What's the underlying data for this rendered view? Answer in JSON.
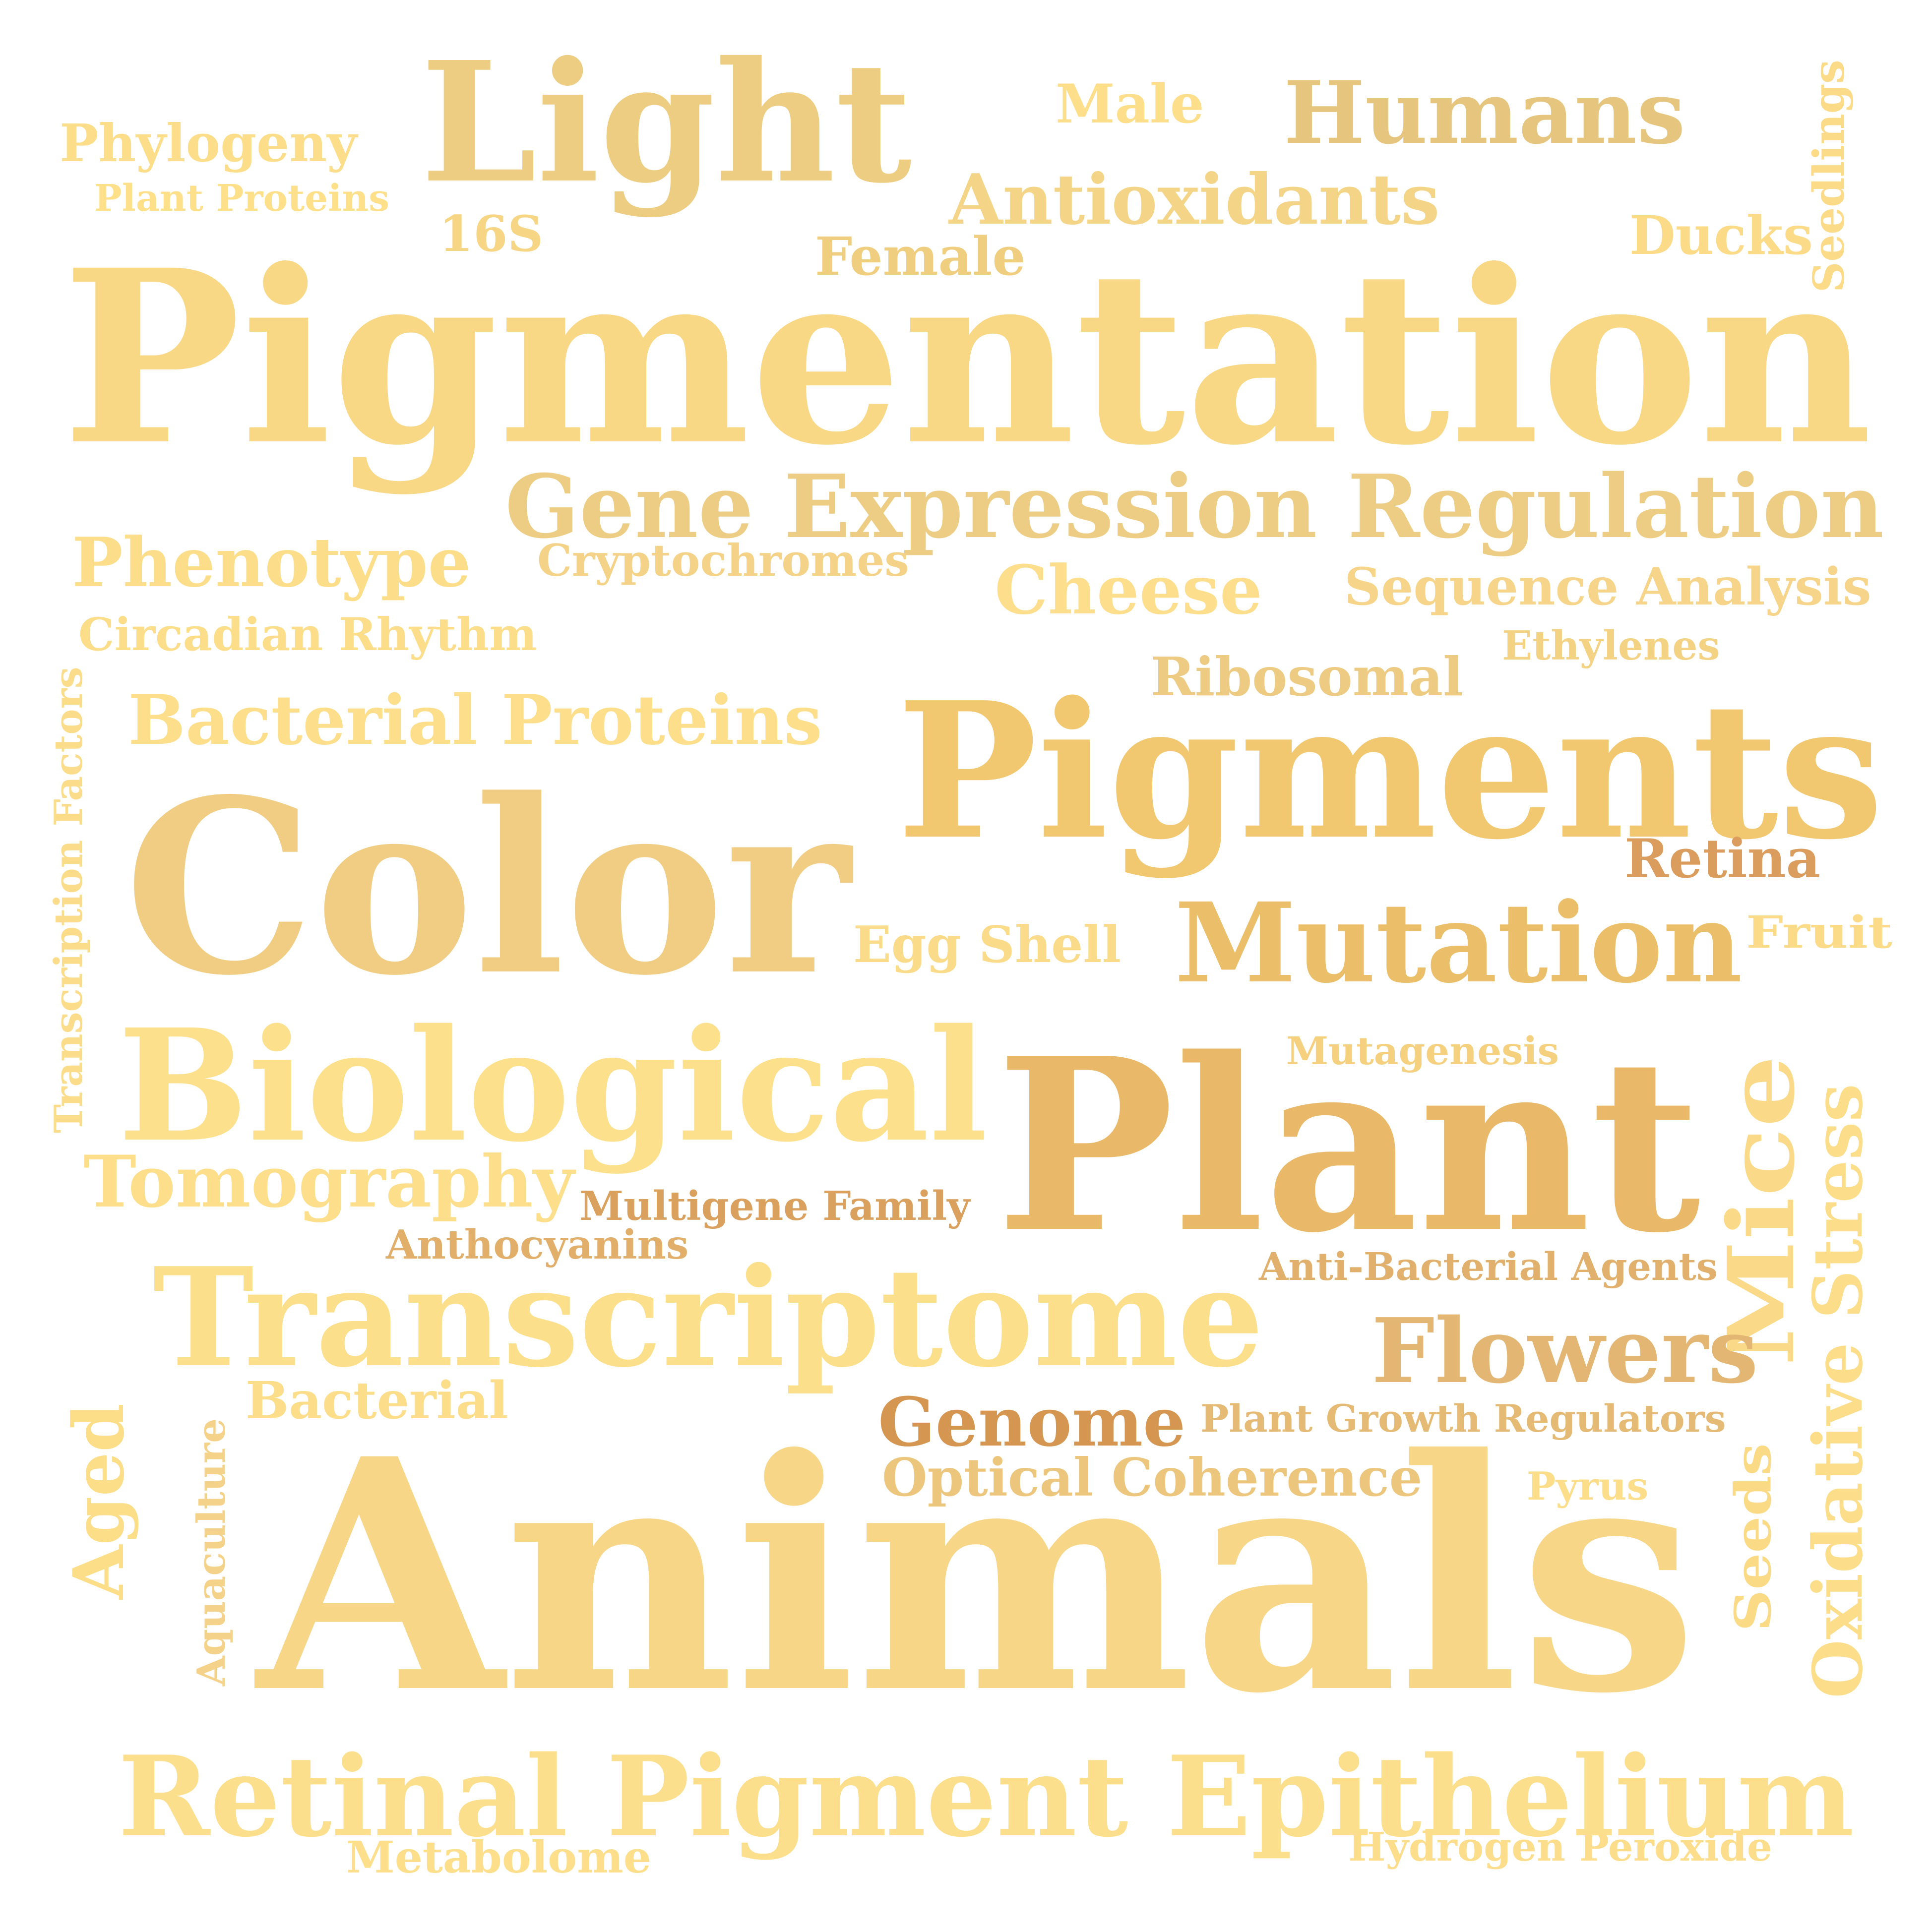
{
  "words": [
    {
      "key": "light",
      "text": "Light",
      "color": "#EDCD82"
    },
    {
      "key": "male",
      "text": "Male",
      "color": "#FCDE8B"
    },
    {
      "key": "humans",
      "text": "Humans",
      "color": "#E6C57E"
    },
    {
      "key": "seedlings",
      "text": "Seedlings",
      "color": "#FBDB88"
    },
    {
      "key": "phylogeny",
      "text": "Phylogeny",
      "color": "#FCDE8A"
    },
    {
      "key": "plant_proteins",
      "text": "Plant Proteins",
      "color": "#FDE089"
    },
    {
      "key": "antioxidants",
      "text": "Antioxidants",
      "color": "#F4D587"
    },
    {
      "key": "s16",
      "text": "16S",
      "color": "#F6D585"
    },
    {
      "key": "female",
      "text": "Female",
      "color": "#F0CE7F"
    },
    {
      "key": "ducks",
      "text": "Ducks",
      "color": "#FBDB88"
    },
    {
      "key": "pigmentation",
      "text": "Pigmentation",
      "color": "#F8D785"
    },
    {
      "key": "gene_expression_regulation",
      "text": "Gene Expression Regulation",
      "color": "#EDCC83"
    },
    {
      "key": "phenotype",
      "text": "Phenotype",
      "color": "#FCDD89"
    },
    {
      "key": "cryptochromes",
      "text": "Cryptochromes",
      "color": "#F4D389"
    },
    {
      "key": "cheese",
      "text": "Cheese",
      "color": "#FCDE8C"
    },
    {
      "key": "sequence_analysis",
      "text": "Sequence Analysis",
      "color": "#F6D48A"
    },
    {
      "key": "circadian_rhythm",
      "text": "Circadian Rhythm",
      "color": "#FCDD89"
    },
    {
      "key": "ethylenes",
      "text": "Ethylenes",
      "color": "#F4D284"
    },
    {
      "key": "ribosomal",
      "text": "Ribosomal",
      "color": "#EDCB82"
    },
    {
      "key": "transcription_factors",
      "text": "Transcription Factors",
      "color": "#FBDC8A"
    },
    {
      "key": "bacterial_proteins",
      "text": "Bacterial Proteins",
      "color": "#FCDE8B"
    },
    {
      "key": "pigments",
      "text": "Pigments",
      "color": "#F1C76F"
    },
    {
      "key": "color",
      "text": "Color",
      "color": "#F0CD83"
    },
    {
      "key": "retina",
      "text": "Retina",
      "color": "#DB9D5D"
    },
    {
      "key": "egg_shell",
      "text": "Egg Shell",
      "color": "#FADB8A"
    },
    {
      "key": "mutation",
      "text": "Mutation",
      "color": "#EBBF69"
    },
    {
      "key": "fruit",
      "text": "Fruit",
      "color": "#FBDB88"
    },
    {
      "key": "biological",
      "text": "Biological",
      "color": "#FCE08C"
    },
    {
      "key": "mutagenesis",
      "text": "Mutagenesis",
      "color": "#F5D17F"
    },
    {
      "key": "plant",
      "text": "Plant",
      "color": "#E9B969"
    },
    {
      "key": "mice",
      "text": "Mice",
      "color": "#FADA88"
    },
    {
      "key": "oxidative_stress",
      "text": "Oxidative Stress",
      "color": "#FCDD8A"
    },
    {
      "key": "tomography",
      "text": "Tomography",
      "color": "#FCDE8B"
    },
    {
      "key": "multigene_family",
      "text": "Multigene Family",
      "color": "#D9A05E"
    },
    {
      "key": "anthocyanins",
      "text": "Anthocyanins",
      "color": "#E2AF6A"
    },
    {
      "key": "anti_bacterial_agents",
      "text": "Anti-Bacterial Agents",
      "color": "#E0B06C"
    },
    {
      "key": "transcriptome",
      "text": "Transcriptome",
      "color": "#FCDF8A"
    },
    {
      "key": "flowers",
      "text": "Flowers",
      "color": "#E3B773"
    },
    {
      "key": "bacterial",
      "text": "Bacterial",
      "color": "#FCDD8A"
    },
    {
      "key": "genome",
      "text": "Genome",
      "color": "#D49651"
    },
    {
      "key": "plant_growth_regulators",
      "text": "Plant Growth Regulators",
      "color": "#E4BA74"
    },
    {
      "key": "aged",
      "text": "Aged",
      "color": "#FCDE89"
    },
    {
      "key": "aquaculture",
      "text": "Aquaculture",
      "color": "#F5D28A"
    },
    {
      "key": "optical_coherence",
      "text": "Optical Coherence",
      "color": "#EDC67E"
    },
    {
      "key": "pyrus",
      "text": "Pyrus",
      "color": "#FCDD8A"
    },
    {
      "key": "seeds",
      "text": "Seeds",
      "color": "#FBDA86"
    },
    {
      "key": "animals",
      "text": "Animals",
      "color": "#F7D688"
    },
    {
      "key": "retinal_pigment_epithelium",
      "text": "Retinal Pigment Epithelium",
      "color": "#FCDF8C"
    },
    {
      "key": "metabolome",
      "text": "Metabolome",
      "color": "#FCDE8B"
    },
    {
      "key": "hydrogen_peroxide",
      "text": "Hydrogen Peroxide",
      "color": "#FCDD8B"
    }
  ]
}
